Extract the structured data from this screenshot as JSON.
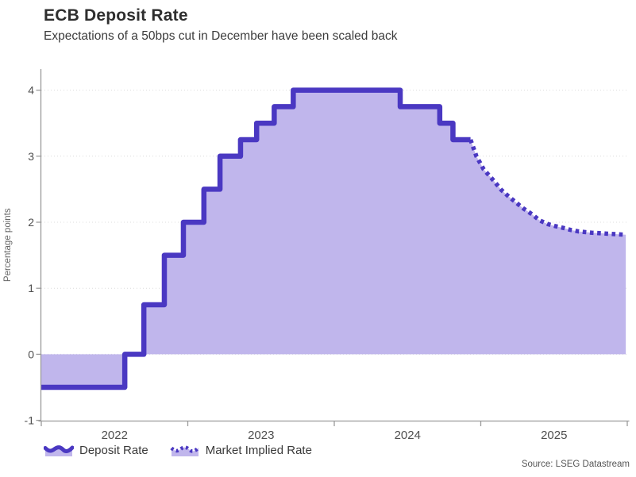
{
  "header": {
    "title": "ECB Deposit Rate",
    "subtitle": "Expectations of a 50bps cut in December have been scaled back"
  },
  "legend": {
    "deposit_label": "Deposit Rate",
    "implied_label": "Market Implied Rate"
  },
  "source_label": "Source: LSEG Datastream",
  "colors": {
    "line": "#4a38c2",
    "fill": "#c0b6ec",
    "grid": "#dcdcdc",
    "axis": "#9b9b9b",
    "tick_text": "#4f4f4f",
    "axis_label_text": "#666666"
  },
  "chart_data": {
    "type": "area",
    "title": "ECB Deposit Rate",
    "subtitle": "Expectations of a 50bps cut in December have been scaled back",
    "ylabel": "Percentage points",
    "xlabel": "",
    "grid": "horizontal-dotted",
    "legend_position": "bottom-left",
    "baseline": 0,
    "xlim": [
      2022,
      2026
    ],
    "ylim": [
      -1.02,
      4.31
    ],
    "y_ticks": [
      -1,
      0,
      1,
      2,
      3,
      4
    ],
    "y_gridlines": [
      0,
      1,
      2,
      3,
      4
    ],
    "x_ticks": [
      2022,
      2023,
      2024,
      2025,
      2026
    ],
    "x_tick_labels": [
      "2022",
      "2023",
      "2024",
      "2025"
    ],
    "series": [
      {
        "name": "Deposit Rate",
        "style": "step-solid",
        "points": [
          [
            2022.0,
            -0.5
          ],
          [
            2022.57,
            0.0
          ],
          [
            2022.7,
            0.75
          ],
          [
            2022.84,
            1.5
          ],
          [
            2022.97,
            2.0
          ],
          [
            2023.11,
            2.5
          ],
          [
            2023.22,
            3.0
          ],
          [
            2023.36,
            3.25
          ],
          [
            2023.47,
            3.5
          ],
          [
            2023.59,
            3.75
          ],
          [
            2023.72,
            4.0
          ],
          [
            2024.45,
            3.75
          ],
          [
            2024.72,
            3.5
          ],
          [
            2024.81,
            3.25
          ],
          [
            2024.93,
            3.25
          ]
        ]
      },
      {
        "name": "Market Implied Rate",
        "style": "dotted",
        "points": [
          [
            2024.93,
            3.25
          ],
          [
            2024.97,
            3.0
          ],
          [
            2025.02,
            2.8
          ],
          [
            2025.08,
            2.65
          ],
          [
            2025.14,
            2.49
          ],
          [
            2025.19,
            2.39
          ],
          [
            2025.24,
            2.3
          ],
          [
            2025.29,
            2.21
          ],
          [
            2025.35,
            2.12
          ],
          [
            2025.4,
            2.03
          ],
          [
            2025.46,
            1.97
          ],
          [
            2025.51,
            1.94
          ],
          [
            2025.57,
            1.91
          ],
          [
            2025.62,
            1.88
          ],
          [
            2025.67,
            1.86
          ],
          [
            2025.76,
            1.84
          ],
          [
            2025.84,
            1.83
          ],
          [
            2025.92,
            1.82
          ],
          [
            2025.99,
            1.81
          ]
        ]
      }
    ]
  }
}
